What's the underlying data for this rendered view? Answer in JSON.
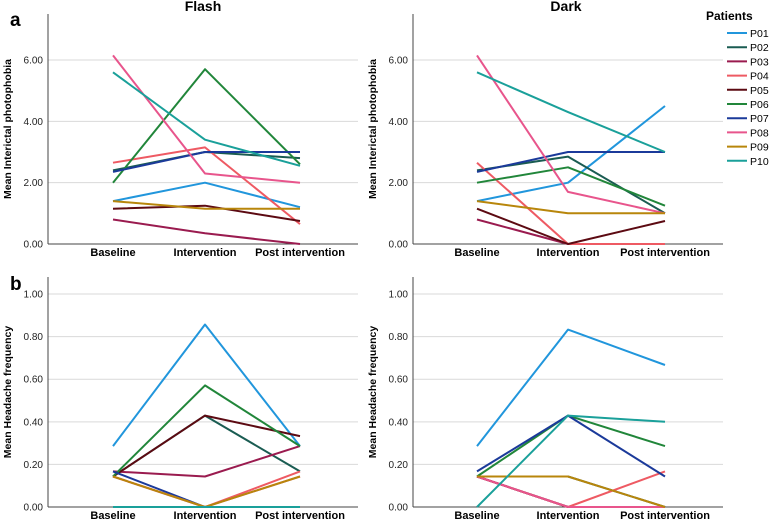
{
  "figure": {
    "row_labels": [
      "a",
      "b"
    ],
    "column_titles": [
      "Flash",
      "Dark"
    ],
    "legend": {
      "title": "Patients",
      "items": [
        {
          "name": "P01",
          "color": "#2196DC"
        },
        {
          "name": "P02",
          "color": "#1A5C52"
        },
        {
          "name": "P03",
          "color": "#9A1B4F"
        },
        {
          "name": "P04",
          "color": "#EE5A63"
        },
        {
          "name": "P05",
          "color": "#5C0A12"
        },
        {
          "name": "P06",
          "color": "#21863A"
        },
        {
          "name": "P07",
          "color": "#1B3A9A"
        },
        {
          "name": "P08",
          "color": "#E8558C"
        },
        {
          "name": "P09",
          "color": "#B8860B"
        },
        {
          "name": "P10",
          "color": "#1AA09A"
        }
      ]
    }
  },
  "chart_data": [
    {
      "type": "line",
      "panel": "a",
      "title": "Flash",
      "categories": [
        "Baseline",
        "Intervention",
        "Post intervention"
      ],
      "xlabel": "",
      "ylabel": "Mean Interictal photophobia",
      "ylim": [
        0,
        7.5
      ],
      "yticks": [
        "0.00",
        "2.00",
        "4.00",
        "6.00"
      ],
      "series": [
        {
          "name": "P01",
          "values": [
            1.4,
            2.0,
            1.2
          ]
        },
        {
          "name": "P02",
          "values": [
            2.4,
            3.0,
            2.8
          ]
        },
        {
          "name": "P03",
          "values": [
            0.8,
            0.35,
            0.0
          ]
        },
        {
          "name": "P04",
          "values": [
            2.65,
            3.15,
            0.65
          ]
        },
        {
          "name": "P05",
          "values": [
            1.15,
            1.25,
            0.75
          ]
        },
        {
          "name": "P06",
          "values": [
            2.0,
            5.7,
            2.6
          ]
        },
        {
          "name": "P07",
          "values": [
            2.35,
            3.0,
            3.0
          ]
        },
        {
          "name": "P08",
          "values": [
            6.15,
            2.3,
            2.0
          ]
        },
        {
          "name": "P09",
          "values": [
            1.4,
            1.15,
            1.15
          ]
        },
        {
          "name": "P10",
          "values": [
            5.6,
            3.4,
            2.55
          ]
        }
      ]
    },
    {
      "type": "line",
      "panel": "a",
      "title": "Dark",
      "categories": [
        "Baseline",
        "Intervention",
        "Post intervention"
      ],
      "xlabel": "",
      "ylabel": "Mean Interictal photophobia",
      "ylim": [
        0,
        7.5
      ],
      "yticks": [
        "0.00",
        "2.00",
        "4.00",
        "6.00"
      ],
      "series": [
        {
          "name": "P01",
          "values": [
            1.4,
            2.0,
            4.5
          ]
        },
        {
          "name": "P02",
          "values": [
            2.4,
            2.85,
            1.0
          ]
        },
        {
          "name": "P03",
          "values": [
            0.8,
            0.0,
            0.0
          ]
        },
        {
          "name": "P04",
          "values": [
            2.65,
            0.0,
            0.0
          ]
        },
        {
          "name": "P05",
          "values": [
            1.15,
            0.0,
            0.75
          ]
        },
        {
          "name": "P06",
          "values": [
            2.0,
            2.5,
            1.25
          ]
        },
        {
          "name": "P07",
          "values": [
            2.35,
            3.0,
            3.0
          ]
        },
        {
          "name": "P08",
          "values": [
            6.15,
            1.7,
            1.0
          ]
        },
        {
          "name": "P09",
          "values": [
            1.4,
            1.0,
            1.0
          ]
        },
        {
          "name": "P10",
          "values": [
            5.6,
            4.3,
            3.0
          ]
        }
      ]
    },
    {
      "type": "line",
      "panel": "b",
      "title": "",
      "categories": [
        "Baseline",
        "Intervention",
        "Post intervention"
      ],
      "xlabel": "",
      "ylabel": "Mean Headache frequency",
      "ylim": [
        0,
        1.08
      ],
      "yticks": [
        "0.00",
        "0.20",
        "0.40",
        "0.60",
        "0.80",
        "1.00"
      ],
      "series": [
        {
          "name": "P01",
          "values": [
            0.286,
            0.857,
            0.286
          ]
        },
        {
          "name": "P02",
          "values": [
            0.143,
            0.429,
            0.167
          ]
        },
        {
          "name": "P03",
          "values": [
            0.167,
            0.143,
            0.286
          ]
        },
        {
          "name": "P04",
          "values": [
            0.143,
            0.0,
            0.167
          ]
        },
        {
          "name": "P05",
          "values": [
            0.143,
            0.429,
            0.333
          ]
        },
        {
          "name": "P06",
          "values": [
            0.143,
            0.571,
            0.286
          ]
        },
        {
          "name": "P07",
          "values": [
            0.167,
            0.0,
            0.0
          ]
        },
        {
          "name": "P08",
          "values": [
            0.143,
            0.0,
            0.143
          ]
        },
        {
          "name": "P09",
          "values": [
            0.143,
            0.0,
            0.143
          ]
        },
        {
          "name": "P10",
          "values": [
            0.0,
            0.0,
            0.0
          ]
        }
      ]
    },
    {
      "type": "line",
      "panel": "b",
      "title": "",
      "categories": [
        "Baseline",
        "Intervention",
        "Post intervention"
      ],
      "xlabel": "",
      "ylabel": "Mean Headache frequency",
      "ylim": [
        0,
        1.08
      ],
      "yticks": [
        "0.00",
        "0.20",
        "0.40",
        "0.60",
        "0.80",
        "1.00"
      ],
      "series": [
        {
          "name": "P01",
          "values": [
            0.286,
            0.833,
            0.667
          ]
        },
        {
          "name": "P02",
          "values": [
            0.143,
            0.143,
            0.0
          ]
        },
        {
          "name": "P03",
          "values": [
            0.143,
            0.0,
            0.0
          ]
        },
        {
          "name": "P04",
          "values": [
            0.143,
            0.0,
            0.167
          ]
        },
        {
          "name": "P05",
          "values": [
            0.143,
            0.0,
            0.0
          ]
        },
        {
          "name": "P06",
          "values": [
            0.143,
            0.429,
            0.286
          ]
        },
        {
          "name": "P07",
          "values": [
            0.167,
            0.429,
            0.143
          ]
        },
        {
          "name": "P08",
          "values": [
            0.143,
            0.0,
            0.0
          ]
        },
        {
          "name": "P09",
          "values": [
            0.143,
            0.143,
            0.0
          ]
        },
        {
          "name": "P10",
          "values": [
            0.0,
            0.429,
            0.4
          ]
        }
      ]
    }
  ]
}
